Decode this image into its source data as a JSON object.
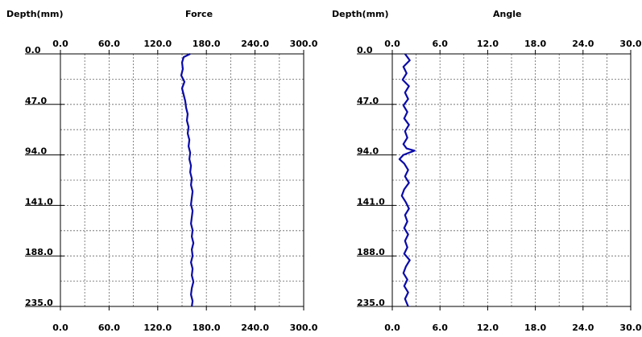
{
  "chart_data": [
    {
      "type": "line",
      "title": "Force",
      "ylabel": "Depth(mm)",
      "xlabel": "",
      "xlim": [
        0,
        300
      ],
      "ylim": [
        0,
        235
      ],
      "x_ticks": [
        "0.0",
        "60.0",
        "120.0",
        "180.0",
        "240.0",
        "300.0"
      ],
      "y_ticks": [
        "0.0",
        "47.0",
        "94.0",
        "141.0",
        "188.0",
        "235.0"
      ],
      "grid": true,
      "series": [
        {
          "color": "#0a0aa8",
          "points": [
            [
              160,
              0
            ],
            [
              152,
              3
            ],
            [
              150,
              8
            ],
            [
              151,
              14
            ],
            [
              149,
              20
            ],
            [
              153,
              26
            ],
            [
              150,
              32
            ],
            [
              152,
              38
            ],
            [
              154,
              44
            ],
            [
              155,
              50
            ],
            [
              157,
              56
            ],
            [
              156,
              62
            ],
            [
              158,
              68
            ],
            [
              157,
              74
            ],
            [
              159,
              80
            ],
            [
              158,
              86
            ],
            [
              160,
              92
            ],
            [
              159,
              98
            ],
            [
              161,
              104
            ],
            [
              160,
              110
            ],
            [
              162,
              116
            ],
            [
              161,
              122
            ],
            [
              163,
              128
            ],
            [
              162,
              134
            ],
            [
              161,
              140
            ],
            [
              163,
              146
            ],
            [
              162,
              152
            ],
            [
              161,
              158
            ],
            [
              163,
              164
            ],
            [
              162,
              170
            ],
            [
              164,
              176
            ],
            [
              162,
              182
            ],
            [
              163,
              188
            ],
            [
              161,
              194
            ],
            [
              163,
              200
            ],
            [
              162,
              206
            ],
            [
              164,
              212
            ],
            [
              162,
              218
            ],
            [
              161,
              224
            ],
            [
              163,
              230
            ],
            [
              162,
              235
            ]
          ]
        }
      ]
    },
    {
      "type": "line",
      "title": "Angle",
      "ylabel": "Depth(mm)",
      "xlabel": "",
      "xlim": [
        0,
        30
      ],
      "ylim": [
        0,
        235
      ],
      "x_ticks": [
        "0.0",
        "6.0",
        "12.0",
        "18.0",
        "24.0",
        "30.0"
      ],
      "y_ticks": [
        "0.0",
        "47.0",
        "94.0",
        "141.0",
        "188.0",
        "235.0"
      ],
      "grid": true,
      "series": [
        {
          "color": "#0a0aa8",
          "points": [
            [
              1.6,
              0
            ],
            [
              2.2,
              6
            ],
            [
              1.4,
              12
            ],
            [
              1.8,
              18
            ],
            [
              1.3,
              24
            ],
            [
              2.1,
              30
            ],
            [
              1.6,
              36
            ],
            [
              2.0,
              42
            ],
            [
              1.4,
              48
            ],
            [
              1.9,
              54
            ],
            [
              1.5,
              60
            ],
            [
              2.1,
              66
            ],
            [
              1.6,
              72
            ],
            [
              1.9,
              78
            ],
            [
              1.4,
              84
            ],
            [
              1.8,
              88
            ],
            [
              2.8,
              90
            ],
            [
              1.4,
              94
            ],
            [
              0.9,
              98
            ],
            [
              1.5,
              102
            ],
            [
              2.0,
              108
            ],
            [
              1.6,
              114
            ],
            [
              2.1,
              120
            ],
            [
              1.5,
              126
            ],
            [
              1.2,
              132
            ],
            [
              1.7,
              138
            ],
            [
              2.1,
              144
            ],
            [
              1.6,
              150
            ],
            [
              1.9,
              156
            ],
            [
              1.5,
              162
            ],
            [
              2.0,
              168
            ],
            [
              1.6,
              174
            ],
            [
              1.9,
              180
            ],
            [
              1.5,
              186
            ],
            [
              2.2,
              192
            ],
            [
              1.7,
              198
            ],
            [
              1.4,
              204
            ],
            [
              1.9,
              210
            ],
            [
              1.5,
              216
            ],
            [
              2.0,
              222
            ],
            [
              1.6,
              228
            ],
            [
              2.0,
              235
            ]
          ]
        }
      ]
    }
  ]
}
